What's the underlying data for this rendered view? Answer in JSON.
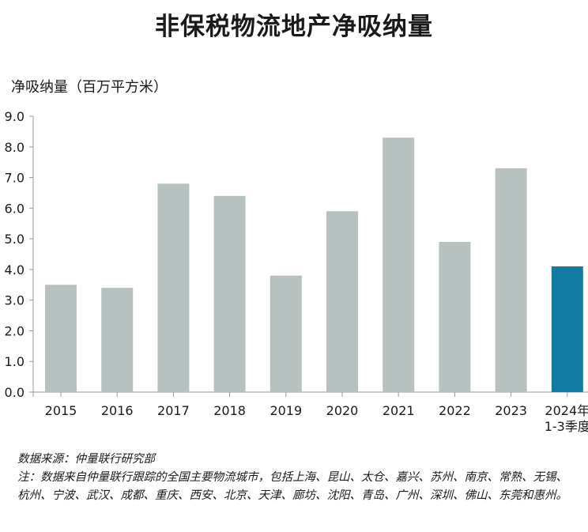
{
  "chart_data": {
    "type": "bar",
    "title": "非保税物流地产净吸纳量",
    "ylabel": "净吸纳量（百万平方米）",
    "xlabel": "",
    "categories": [
      "2015",
      "2016",
      "2017",
      "2018",
      "2019",
      "2020",
      "2021",
      "2022",
      "2023",
      "2024年\n1-3季度"
    ],
    "values": [
      3.5,
      3.4,
      6.8,
      6.4,
      3.8,
      5.9,
      8.3,
      4.9,
      7.3,
      4.1
    ],
    "ylim": [
      0,
      9
    ],
    "yticks": [
      "0.0",
      "1.0",
      "2.0",
      "3.0",
      "4.0",
      "5.0",
      "6.0",
      "7.0",
      "8.0",
      "9.0"
    ],
    "grid": false,
    "colors": {
      "default": "#b7c2c0",
      "highlight": "#127ba3"
    },
    "highlight_index": 9
  },
  "footer": {
    "source": "数据来源：仲量联行研究部",
    "note": "注：数据来自仲量联行跟踪的全国主要物流城市，包括上海、昆山、太仓、嘉兴、苏州、南京、常熟、无锡、杭州、宁波、武汉、成都、重庆、西安、北京、天津、廊坊、沈阳、青岛、广州、深圳、佛山、东莞和惠州。"
  }
}
